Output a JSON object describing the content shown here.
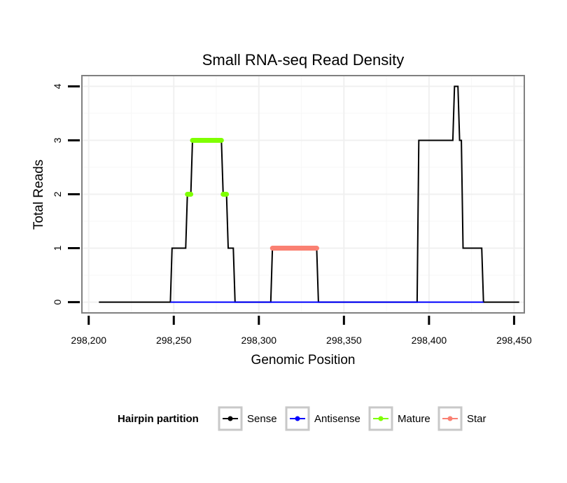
{
  "chart_data": {
    "type": "line",
    "title": "Small RNA-seq Read Density",
    "xlabel": "Genomic Position",
    "ylabel": "Total Reads",
    "xlim": [
      298196,
      298456
    ],
    "ylim": [
      -0.2,
      4.2
    ],
    "x_ticks": [
      298200,
      298250,
      298300,
      298350,
      298400,
      298450
    ],
    "x_tick_labels": [
      "298,200",
      "298,250",
      "298,300",
      "298,350",
      "298,400",
      "298,450"
    ],
    "y_ticks": [
      0,
      1,
      2,
      3,
      4
    ],
    "y_tick_labels": [
      "0",
      "1",
      "2",
      "3",
      "4"
    ],
    "grid": true,
    "legend": {
      "title": "Hairpin partition",
      "position": "bottom",
      "entries": [
        "Sense",
        "Antisense",
        "Mature",
        "Star"
      ]
    },
    "series": [
      {
        "name": "Sense",
        "color": "#000000",
        "points": [
          [
            298206,
            0
          ],
          [
            298248,
            0
          ],
          [
            298249,
            1
          ],
          [
            298257,
            1
          ],
          [
            298258,
            2
          ],
          [
            298260,
            2
          ],
          [
            298261,
            3
          ],
          [
            298278,
            3
          ],
          [
            298279,
            2
          ],
          [
            298281,
            2
          ],
          [
            298282,
            1
          ],
          [
            298285,
            1
          ],
          [
            298286,
            0
          ],
          [
            298307,
            0
          ],
          [
            298308,
            1
          ],
          [
            298334,
            1
          ],
          [
            298335,
            0
          ],
          [
            298393,
            0
          ],
          [
            298394,
            3
          ],
          [
            298414,
            3
          ],
          [
            298415,
            4
          ],
          [
            298417,
            4
          ],
          [
            298418,
            3
          ],
          [
            298419,
            3
          ],
          [
            298420,
            1
          ],
          [
            298431,
            1
          ],
          [
            298432,
            0
          ],
          [
            298453,
            0
          ]
        ]
      },
      {
        "name": "Antisense",
        "color": "#0000ff",
        "points": [
          [
            298248,
            0
          ],
          [
            298432,
            0
          ]
        ]
      },
      {
        "name": "Mature",
        "color": "#7fff00",
        "segments": [
          [
            [
              298258,
              2
            ],
            [
              298260,
              2
            ]
          ],
          [
            [
              298261,
              3
            ],
            [
              298278,
              3
            ]
          ],
          [
            [
              298279,
              2
            ],
            [
              298281,
              2
            ]
          ]
        ]
      },
      {
        "name": "Star",
        "color": "#fa8072",
        "segments": [
          [
            [
              298308,
              1
            ],
            [
              298334,
              1
            ]
          ]
        ]
      }
    ]
  }
}
